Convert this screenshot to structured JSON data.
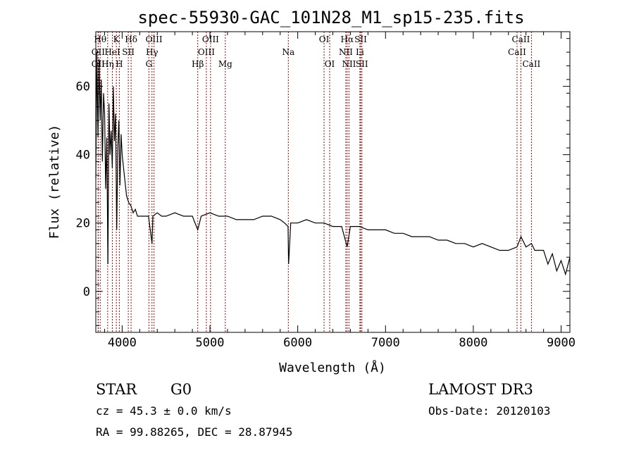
{
  "chart_data": {
    "type": "line",
    "title": "spec-55930-GAC_101N28_M1_sp15-235.fits",
    "xlabel": "Wavelength (Å)",
    "ylabel": "Flux (relative)",
    "xlim": [
      3700,
      9100
    ],
    "ylim": [
      -12,
      76
    ],
    "xticks": [
      4000,
      5000,
      6000,
      7000,
      8000,
      9000
    ],
    "yticks": [
      0,
      20,
      40,
      60
    ],
    "xtick_labels": [
      "4000",
      "5000",
      "6000",
      "7000",
      "8000",
      "9000"
    ],
    "ytick_labels": [
      "0",
      "20",
      "40",
      "60"
    ],
    "series": [
      {
        "name": "flux",
        "x": [
          3700,
          3712,
          3725,
          3737,
          3750,
          3762,
          3775,
          3788,
          3800,
          3812,
          3825,
          3838,
          3850,
          3862,
          3875,
          3888,
          3900,
          3912,
          3925,
          3938,
          3950,
          3962,
          3975,
          3988,
          4000,
          4025,
          4050,
          4075,
          4100,
          4125,
          4150,
          4175,
          4200,
          4250,
          4300,
          4340,
          4350,
          4400,
          4450,
          4500,
          4600,
          4700,
          4800,
          4861,
          4900,
          5000,
          5100,
          5200,
          5300,
          5400,
          5500,
          5600,
          5700,
          5800,
          5850,
          5890,
          5896,
          5920,
          6000,
          6100,
          6200,
          6300,
          6400,
          6500,
          6563,
          6600,
          6700,
          6800,
          6900,
          7000,
          7100,
          7200,
          7300,
          7400,
          7500,
          7600,
          7700,
          7800,
          7900,
          8000,
          8100,
          8200,
          8300,
          8400,
          8498,
          8542,
          8600,
          8662,
          8700,
          8800,
          8850,
          8900,
          8950,
          9000,
          9050,
          9100
        ],
        "y": [
          33,
          70,
          45,
          68,
          50,
          62,
          38,
          58,
          52,
          30,
          45,
          8,
          55,
          40,
          47,
          36,
          60,
          44,
          52,
          18,
          42,
          50,
          31,
          46,
          40,
          34,
          28,
          26,
          25,
          23,
          24,
          22,
          22,
          22,
          22,
          14,
          22,
          23,
          22,
          22,
          23,
          22,
          22,
          18,
          22,
          23,
          22,
          22,
          21,
          21,
          21,
          22,
          22,
          21,
          20,
          19,
          8,
          20,
          20,
          21,
          20,
          20,
          19,
          19,
          13,
          19,
          19,
          18,
          18,
          18,
          17,
          17,
          16,
          16,
          16,
          15,
          15,
          14,
          14,
          13,
          14,
          13,
          12,
          12,
          13,
          16,
          13,
          14,
          12,
          12,
          8,
          11,
          6,
          9,
          5,
          10
        ]
      }
    ],
    "spectral_lines": [
      {
        "label": "OII",
        "x": 3727,
        "row": 1
      },
      {
        "label": "OII",
        "x": 3727,
        "row": 2
      },
      {
        "label": "Hθ",
        "x": 3750,
        "row": 0
      },
      {
        "label": "Hη",
        "x": 3835,
        "row": 2
      },
      {
        "label": "K",
        "x": 3934,
        "row": 0
      },
      {
        "label": "HeI",
        "x": 3889,
        "row": 1
      },
      {
        "label": "H",
        "x": 3968,
        "row": 2
      },
      {
        "label": "SII",
        "x": 4070,
        "row": 1
      },
      {
        "label": "Hδ",
        "x": 4102,
        "row": 0
      },
      {
        "label": "OIII",
        "x": 4363,
        "row": 0
      },
      {
        "label": "Hγ",
        "x": 4340,
        "row": 1
      },
      {
        "label": "G",
        "x": 4305,
        "row": 2
      },
      {
        "label": "Hβ",
        "x": 4861,
        "row": 2
      },
      {
        "label": "OIII",
        "x": 5007,
        "row": 0
      },
      {
        "label": "OIII",
        "x": 4959,
        "row": 1
      },
      {
        "label": "Mg",
        "x": 5175,
        "row": 2
      },
      {
        "label": "Na",
        "x": 5893,
        "row": 1
      },
      {
        "label": "OI",
        "x": 6300,
        "row": 0
      },
      {
        "label": "OI",
        "x": 6364,
        "row": 2
      },
      {
        "label": "Hα",
        "x": 6563,
        "row": 0
      },
      {
        "label": "NII",
        "x": 6548,
        "row": 1
      },
      {
        "label": "NII",
        "x": 6584,
        "row": 2
      },
      {
        "label": "SII",
        "x": 6717,
        "row": 0
      },
      {
        "label": "Li",
        "x": 6708,
        "row": 1
      },
      {
        "label": "SII",
        "x": 6731,
        "row": 2
      },
      {
        "label": "CaII",
        "x": 8542,
        "row": 0
      },
      {
        "label": "CaII",
        "x": 8498,
        "row": 1
      },
      {
        "label": "CaII",
        "x": 8662,
        "row": 2
      }
    ]
  },
  "info": {
    "class": "STAR",
    "subclass": "G0",
    "survey": "LAMOST DR3",
    "cz": "cz = 45.3 ± 0.0 km/s",
    "obs_date": "Obs-Date: 20120103",
    "coords": "RA =  99.88265, DEC =  28.87945"
  },
  "colors": {
    "spectrum": "#000000",
    "line_marker": "#aa0000",
    "axes": "#000000",
    "background": "#ffffff"
  }
}
